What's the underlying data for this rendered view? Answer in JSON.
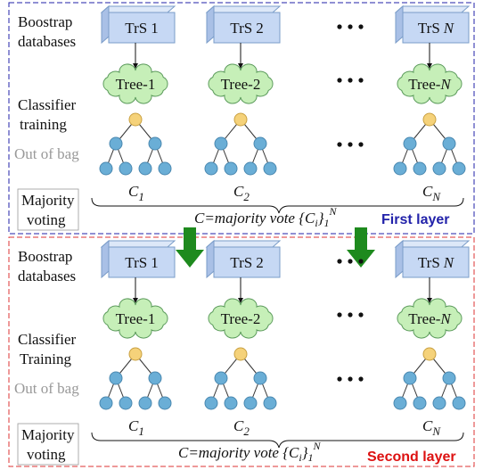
{
  "layers": [
    {
      "title": "First layer",
      "color": "#2222aa",
      "row_labels": {
        "databases": [
          "Boostrap",
          "databases"
        ],
        "training": [
          "Classifier",
          "training"
        ],
        "out_of_bag": "Out of bag",
        "voting": [
          "Majority",
          "voting"
        ]
      },
      "columns": [
        {
          "set": {
            "prefix": "TrS",
            "index": "1"
          },
          "tree": {
            "prefix": "Tree-",
            "index": "1"
          },
          "classifier": {
            "base": "C",
            "sub": "1"
          }
        },
        {
          "set": {
            "prefix": "TrS",
            "index": "2"
          },
          "tree": {
            "prefix": "Tree-",
            "index": "2"
          },
          "classifier": {
            "base": "C",
            "sub": "2"
          }
        },
        {
          "set": {
            "prefix": "TrS",
            "index": "N"
          },
          "tree": {
            "prefix": "Tree-",
            "index": "N"
          },
          "classifier": {
            "base": "C",
            "sub": "N"
          }
        }
      ],
      "formula": {
        "start": "C=majority vote {C",
        "sub_i": "i",
        "end": "}",
        "sub": "1",
        "sup": "N"
      }
    },
    {
      "title": "Second layer",
      "color": "#dd1111",
      "row_labels": {
        "databases": [
          "Boostrap",
          "databases"
        ],
        "training": [
          "Classifier",
          "Training"
        ],
        "out_of_bag": "Out of bag",
        "voting": [
          "Majority",
          "voting"
        ]
      },
      "columns": [
        {
          "set": {
            "prefix": "TrS",
            "index": "1"
          },
          "tree": {
            "prefix": "Tree-",
            "index": "1"
          },
          "classifier": {
            "base": "C",
            "sub": "1"
          }
        },
        {
          "set": {
            "prefix": "TrS",
            "index": "2"
          },
          "tree": {
            "prefix": "Tree-",
            "index": "2"
          },
          "classifier": {
            "base": "C",
            "sub": "2"
          }
        },
        {
          "set": {
            "prefix": "TrS",
            "index": "N"
          },
          "tree": {
            "prefix": "Tree-",
            "index": "N"
          },
          "classifier": {
            "base": "C",
            "sub": "N"
          }
        }
      ],
      "formula": {
        "start": "C=majority vote {C",
        "sub_i": "i",
        "end": "}",
        "sub": "1",
        "sup": "N"
      }
    }
  ]
}
